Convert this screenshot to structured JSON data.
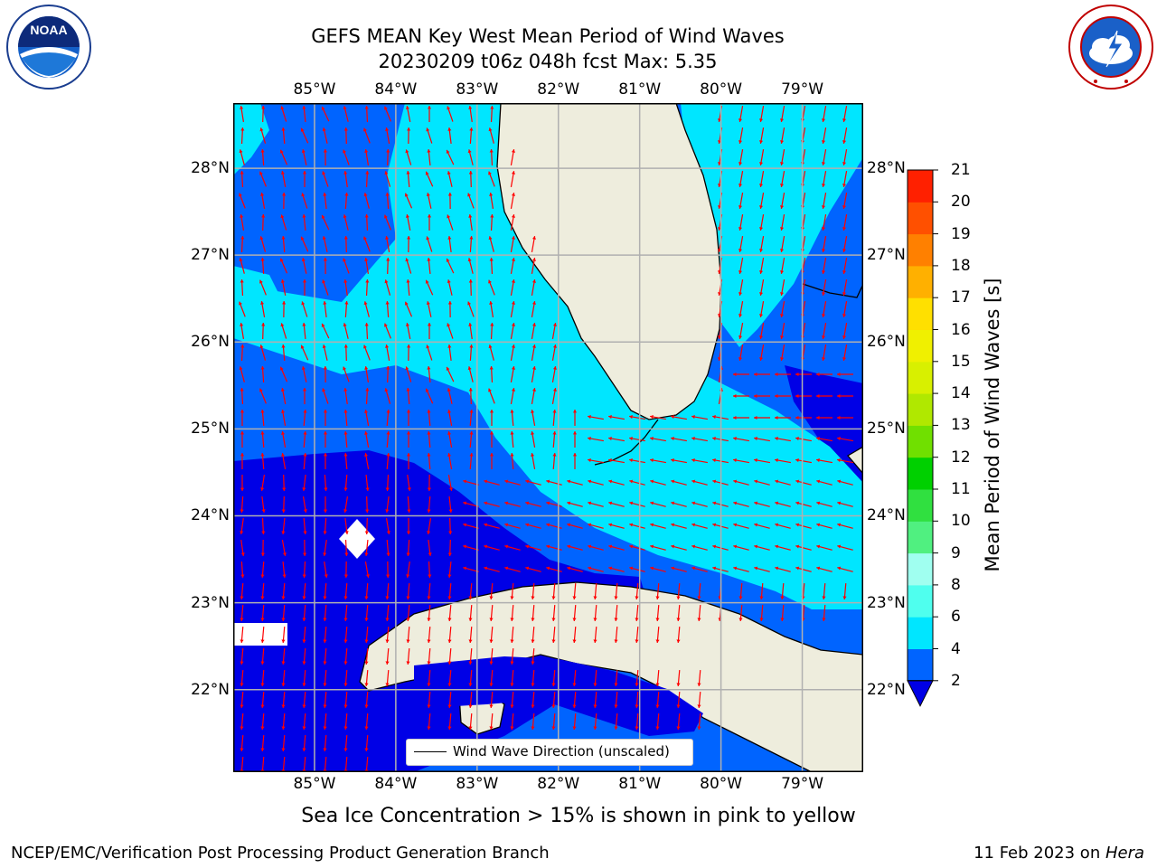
{
  "title": {
    "line1": "GEFS MEAN Key West Mean Period of Wind Waves",
    "line2": "20230209 t06z 048h fcst   Max: 5.35"
  },
  "logos": {
    "left": "NOAA",
    "right": "NATIONAL WEATHER SERVICE"
  },
  "map": {
    "lon_labels": [
      "85°W",
      "84°W",
      "83°W",
      "82°W",
      "81°W",
      "80°W",
      "79°W"
    ],
    "lat_labels": [
      "28°N",
      "27°N",
      "26°N",
      "25°N",
      "24°N",
      "23°N",
      "22°N"
    ],
    "lon_range": [
      -86.0,
      -78.25
    ],
    "lat_range": [
      21.05,
      28.75
    ],
    "legend_label": "Wind Wave Direction (unscaled)",
    "colors": {
      "land": "#eeeddd",
      "missing": "#ffffff",
      "arrow": "#ff0000",
      "coast": "#000000",
      "grid": "#b0b0b0"
    }
  },
  "colorbar": {
    "label": "Mean Period of Wind Waves [s]",
    "ticks": [
      "2",
      "4",
      "6",
      "8",
      "9",
      "10",
      "11",
      "12",
      "13",
      "14",
      "15",
      "16",
      "17",
      "18",
      "19",
      "20",
      "21"
    ],
    "colors": [
      "#0064ff",
      "#00e6ff",
      "#4fffee",
      "#a0fff0",
      "#50f080",
      "#30e040",
      "#00d000",
      "#70e000",
      "#b0e800",
      "#d8f000",
      "#f0f000",
      "#ffe000",
      "#ffb000",
      "#ff8000",
      "#ff5000",
      "#ff2000",
      "#ff0000"
    ],
    "under_color": "#0000e6",
    "field_colors": {
      "lt2": "#0000e6",
      "2to4": "#0064ff",
      "4to6": "#00e6ff"
    }
  },
  "subtitle": "Sea Ice Concentration > 15% is shown in pink to yellow",
  "footer": {
    "left": "NCEP/EMC/Verification Post Processing Product Generation Branch",
    "right_date": "11 Feb 2023 on ",
    "right_host": "Hera"
  }
}
